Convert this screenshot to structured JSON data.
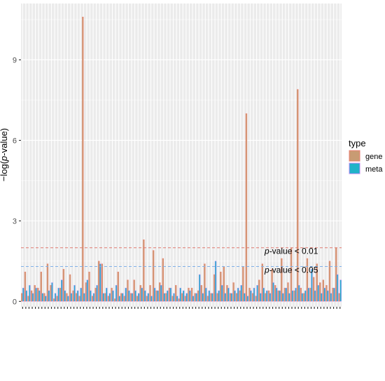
{
  "chart_data": {
    "type": "bar",
    "ylabel_prefix": "−log(",
    "ylabel_italic": "p",
    "ylabel_suffix": "-value)",
    "ylim": [
      -0.2,
      11.1
    ],
    "yticks": [
      0,
      3,
      6,
      9
    ],
    "grid": true,
    "legend": {
      "title": "type",
      "position": "right",
      "items": [
        {
          "name": "gene",
          "fill": "#C89B73",
          "stroke": "#F8766D"
        },
        {
          "name": "meta",
          "fill": "#1FB3C8",
          "stroke": "#C77CFF"
        }
      ]
    },
    "thresholds": [
      {
        "value": 2.0,
        "label_italic": "p",
        "label_rest": "-value < 0.01",
        "color": "#E0796F"
      },
      {
        "value": 1.3,
        "label_italic": "p",
        "label_rest": "-value < 0.05",
        "color": "#7FB0E8"
      }
    ],
    "category_count": 100,
    "series": [
      {
        "name": "gene",
        "values": [
          0.3,
          1.1,
          0.2,
          0.4,
          0.6,
          0.5,
          1.1,
          0.3,
          1.4,
          0.6,
          0.1,
          0.2,
          0.5,
          1.2,
          0.3,
          1.0,
          0.4,
          0.3,
          0.2,
          10.6,
          0.7,
          1.1,
          0.2,
          0.5,
          1.5,
          1.4,
          0.3,
          0.2,
          0.5,
          0.1,
          1.1,
          0.3,
          0.2,
          0.8,
          0.3,
          0.8,
          0.2,
          0.6,
          2.3,
          0.2,
          0.6,
          1.9,
          0.4,
          0.7,
          1.6,
          0.3,
          0.5,
          0.2,
          0.6,
          0.1,
          0.3,
          0.2,
          0.5,
          0.5,
          0.3,
          0.4,
          0.6,
          1.4,
          0.2,
          0.3,
          1.0,
          0.3,
          1.1,
          1.3,
          0.6,
          0.3,
          0.7,
          0.3,
          0.4,
          1.3,
          7.0,
          0.5,
          0.3,
          0.2,
          0.8,
          1.4,
          0.3,
          0.4,
          1.2,
          0.6,
          0.4,
          1.6,
          0.5,
          0.7,
          2.0,
          0.4,
          7.9,
          0.5,
          0.3,
          1.6,
          0.5,
          0.9,
          1.4,
          0.7,
          0.8,
          0.6,
          1.5,
          0.5,
          2.0,
          0.3
        ]
      },
      {
        "name": "meta",
        "values": [
          0.5,
          0.4,
          0.6,
          0.3,
          0.5,
          0.4,
          0.3,
          0.2,
          0.4,
          0.7,
          0.3,
          0.5,
          0.8,
          0.4,
          0.2,
          0.3,
          0.6,
          0.4,
          0.5,
          0.3,
          0.8,
          0.4,
          0.3,
          0.6,
          1.4,
          0.3,
          0.5,
          0.3,
          0.4,
          0.6,
          0.2,
          0.3,
          0.5,
          0.4,
          0.3,
          0.4,
          0.3,
          0.5,
          0.4,
          0.3,
          0.2,
          0.5,
          0.4,
          0.6,
          0.3,
          0.4,
          0.5,
          0.3,
          0.2,
          0.5,
          0.4,
          0.3,
          0.4,
          0.2,
          0.3,
          1.0,
          0.3,
          0.5,
          0.4,
          0.3,
          1.5,
          0.4,
          0.6,
          0.3,
          0.5,
          0.3,
          0.4,
          0.5,
          0.6,
          0.3,
          0.2,
          0.4,
          0.5,
          0.6,
          0.3,
          0.5,
          0.4,
          0.3,
          0.7,
          0.5,
          0.4,
          0.3,
          0.5,
          0.3,
          0.4,
          0.5,
          0.6,
          0.3,
          0.4,
          0.5,
          1.2,
          0.4,
          0.6,
          0.3,
          0.5,
          0.4,
          0.3,
          0.5,
          1.0,
          0.8
        ]
      }
    ]
  }
}
